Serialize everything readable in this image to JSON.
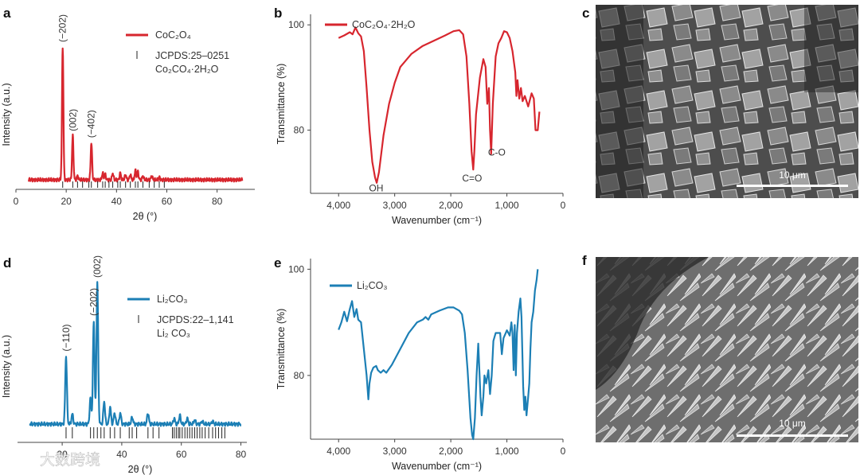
{
  "watermark": "大数跨境",
  "colors": {
    "red": "#d7262e",
    "blue": "#1c7fb5",
    "axis": "#444444",
    "text": "#333333"
  },
  "panel_letters": {
    "a": "a",
    "b": "b",
    "c": "c",
    "d": "d",
    "e": "e",
    "f": "f"
  },
  "sem": {
    "c": {
      "scale_label": "10 μm"
    },
    "f": {
      "scale_label": "10 μm"
    }
  },
  "chart_data": [
    {
      "panel": "a",
      "type": "line",
      "xlabel": "2θ (°)",
      "ylabel": "Intensity (a.u.)",
      "xlim": [
        0,
        95
      ],
      "ylim": [
        0,
        1.1
      ],
      "x_ticks": [
        0,
        20,
        40,
        60,
        80
      ],
      "x_tick_labels": [
        "0",
        "20",
        "40",
        "60",
        "80"
      ],
      "legend": {
        "line_label": "CoC₂O₄",
        "ref_line1": "JCPDS:25–0251",
        "ref_line2": "Co₂CO₄·2H₂O"
      },
      "peaks": [
        {
          "x": 18.6,
          "h": 1.0,
          "label": "(−202)"
        },
        {
          "x": 22.6,
          "h": 0.33,
          "label": "(002)"
        },
        {
          "x": 24.5,
          "h": 0.03,
          "label": ""
        },
        {
          "x": 30.0,
          "h": 0.28,
          "label": "(−402)"
        },
        {
          "x": 34.5,
          "h": 0.05,
          "label": ""
        },
        {
          "x": 35.5,
          "h": 0.04,
          "label": ""
        },
        {
          "x": 38.5,
          "h": 0.05,
          "label": ""
        },
        {
          "x": 41.5,
          "h": 0.05,
          "label": ""
        },
        {
          "x": 43.6,
          "h": 0.04,
          "label": ""
        },
        {
          "x": 45.5,
          "h": 0.04,
          "label": ""
        },
        {
          "x": 47.5,
          "h": 0.07,
          "label": ""
        },
        {
          "x": 48.5,
          "h": 0.06,
          "label": ""
        },
        {
          "x": 50.5,
          "h": 0.03,
          "label": ""
        },
        {
          "x": 54.0,
          "h": 0.03,
          "label": ""
        },
        {
          "x": 57.0,
          "h": 0.02,
          "label": ""
        }
      ],
      "reference_lines": [
        18.6,
        22.6,
        24.5,
        26.5,
        29.0,
        30.0,
        32.5,
        34.5,
        35.5,
        37.0,
        38.5,
        40.5,
        41.5,
        43.6,
        45.5,
        47.5,
        48.5,
        50.5,
        53.0,
        55.0,
        57.0,
        59.0
      ]
    },
    {
      "panel": "b",
      "type": "line",
      "xlabel": "Wavenumber (cm⁻¹)",
      "ylabel": "Transmittance (%)",
      "xlim": [
        4500,
        0
      ],
      "ylim": [
        68,
        102
      ],
      "x_ticks": [
        4000,
        3000,
        2000,
        1000,
        0
      ],
      "x_tick_labels": [
        "4,000",
        "3,000",
        "2,000",
        "1,000",
        "0"
      ],
      "y_ticks": [
        80,
        100
      ],
      "y_tick_labels": [
        "80",
        "100"
      ],
      "legend": {
        "line_label": "CoC₂O₄·2H₂O"
      },
      "annotations": [
        {
          "text": "OH",
          "x": 3330,
          "y": 68.7
        },
        {
          "text": "C=O",
          "x": 1620,
          "y": 70.6
        },
        {
          "text": "C-O",
          "x": 1180,
          "y": 75.5
        }
      ],
      "points": [
        [
          4000,
          97.5
        ],
        [
          3900,
          98
        ],
        [
          3800,
          98.6
        ],
        [
          3750,
          98.2
        ],
        [
          3700,
          99.5
        ],
        [
          3650,
          98.4
        ],
        [
          3600,
          97.8
        ],
        [
          3550,
          95
        ],
        [
          3500,
          88
        ],
        [
          3450,
          80
        ],
        [
          3400,
          74
        ],
        [
          3350,
          71
        ],
        [
          3320,
          70
        ],
        [
          3280,
          72
        ],
        [
          3200,
          79
        ],
        [
          3100,
          85
        ],
        [
          3000,
          89
        ],
        [
          2900,
          92
        ],
        [
          2700,
          94.5
        ],
        [
          2500,
          96
        ],
        [
          2300,
          97
        ],
        [
          2100,
          98
        ],
        [
          1950,
          98.8
        ],
        [
          1850,
          99
        ],
        [
          1780,
          98.2
        ],
        [
          1720,
          94
        ],
        [
          1670,
          85
        ],
        [
          1630,
          76
        ],
        [
          1600,
          72.5
        ],
        [
          1580,
          76
        ],
        [
          1550,
          83
        ],
        [
          1480,
          90
        ],
        [
          1420,
          93.5
        ],
        [
          1380,
          92
        ],
        [
          1350,
          85
        ],
        [
          1320,
          88
        ],
        [
          1300,
          80
        ],
        [
          1280,
          75.5
        ],
        [
          1250,
          85
        ],
        [
          1200,
          94
        ],
        [
          1150,
          96.5
        ],
        [
          1100,
          97.5
        ],
        [
          1050,
          98.8
        ],
        [
          1000,
          98.6
        ],
        [
          950,
          97.5
        ],
        [
          900,
          95
        ],
        [
          850,
          91
        ],
        [
          830,
          86.5
        ],
        [
          810,
          89.5
        ],
        [
          780,
          86
        ],
        [
          750,
          88
        ],
        [
          720,
          85.5
        ],
        [
          680,
          86.5
        ],
        [
          620,
          84.5
        ],
        [
          560,
          87
        ],
        [
          520,
          86
        ],
        [
          490,
          80
        ],
        [
          450,
          80
        ],
        [
          420,
          83.5
        ]
      ]
    },
    {
      "panel": "d",
      "type": "line",
      "xlabel": "2θ (°)",
      "ylabel": "Intensity (a.u.)",
      "xlim": [
        5,
        82
      ],
      "ylim": [
        0,
        1.1
      ],
      "x_ticks": [
        20,
        40,
        60,
        80
      ],
      "x_tick_labels": [
        "20",
        "40",
        "60",
        "80"
      ],
      "legend": {
        "line_label": "Li₂CO₃",
        "ref_line1": "JCPDS:22–1,141",
        "ref_line2": "Li₂ CO₃"
      },
      "peaks": [
        {
          "x": 21.3,
          "h": 0.48,
          "label": "(−110)"
        },
        {
          "x": 23.4,
          "h": 0.07,
          "label": ""
        },
        {
          "x": 29.5,
          "h": 0.18,
          "label": ""
        },
        {
          "x": 30.6,
          "h": 0.73,
          "label": "(−202)"
        },
        {
          "x": 31.8,
          "h": 1.0,
          "label": "(002)"
        },
        {
          "x": 34.1,
          "h": 0.16,
          "label": ""
        },
        {
          "x": 36.1,
          "h": 0.12,
          "label": ""
        },
        {
          "x": 37.6,
          "h": 0.08,
          "label": ""
        },
        {
          "x": 39.5,
          "h": 0.08,
          "label": ""
        },
        {
          "x": 43.5,
          "h": 0.05,
          "label": ""
        },
        {
          "x": 48.8,
          "h": 0.08,
          "label": ""
        },
        {
          "x": 57.6,
          "h": 0.04,
          "label": ""
        },
        {
          "x": 59.5,
          "h": 0.06,
          "label": ""
        },
        {
          "x": 62.0,
          "h": 0.04,
          "label": ""
        },
        {
          "x": 64.5,
          "h": 0.03,
          "label": ""
        },
        {
          "x": 67.0,
          "h": 0.02,
          "label": ""
        },
        {
          "x": 70.5,
          "h": 0.02,
          "label": ""
        }
      ],
      "reference_lines": [
        21.3,
        23.4,
        29.5,
        30.6,
        31.8,
        33.0,
        34.1,
        36.1,
        37.6,
        39.5,
        42.5,
        43.5,
        45.0,
        48.8,
        50.5,
        52.5,
        57.0,
        57.6,
        58.3,
        59.0,
        59.5,
        60.3,
        61.2,
        62.0,
        62.8,
        63.6,
        64.5,
        65.3,
        66.2,
        67.0,
        68.0,
        69.2,
        70.5,
        71.5,
        72.5,
        73.6,
        74.6
      ]
    },
    {
      "panel": "e",
      "type": "line",
      "xlabel": "Wavenumber (cm⁻¹)",
      "ylabel": "Transmittance (%)",
      "xlim": [
        4500,
        0
      ],
      "ylim": [
        68,
        102
      ],
      "x_ticks": [
        4000,
        3000,
        2000,
        1000,
        0
      ],
      "x_tick_labels": [
        "4,000",
        "3,000",
        "2,000",
        "1,000",
        "0"
      ],
      "y_ticks": [
        80,
        100
      ],
      "y_tick_labels": [
        "80",
        "100"
      ],
      "legend": {
        "line_label": "Li₂CO₃"
      },
      "points": [
        [
          4000,
          88.6
        ],
        [
          3950,
          90
        ],
        [
          3900,
          92
        ],
        [
          3850,
          90.2
        ],
        [
          3800,
          92.5
        ],
        [
          3760,
          94
        ],
        [
          3720,
          91
        ],
        [
          3680,
          92.5
        ],
        [
          3650,
          90.5
        ],
        [
          3600,
          90
        ],
        [
          3550,
          85
        ],
        [
          3500,
          80
        ],
        [
          3470,
          75.5
        ],
        [
          3450,
          78.5
        ],
        [
          3420,
          80.5
        ],
        [
          3380,
          81.5
        ],
        [
          3330,
          81.8
        ],
        [
          3300,
          81
        ],
        [
          3250,
          80.5
        ],
        [
          3200,
          81
        ],
        [
          3150,
          80.5
        ],
        [
          3050,
          82
        ],
        [
          2900,
          85
        ],
        [
          2750,
          88
        ],
        [
          2600,
          90
        ],
        [
          2500,
          90.5
        ],
        [
          2450,
          91
        ],
        [
          2400,
          90.5
        ],
        [
          2350,
          91.5
        ],
        [
          2200,
          92.2
        ],
        [
          2050,
          92.8
        ],
        [
          1950,
          92.8
        ],
        [
          1850,
          92.2
        ],
        [
          1800,
          91.5
        ],
        [
          1750,
          88
        ],
        [
          1700,
          81
        ],
        [
          1650,
          72
        ],
        [
          1620,
          68.8
        ],
        [
          1600,
          68
        ],
        [
          1570,
          72
        ],
        [
          1540,
          80
        ],
        [
          1510,
          86
        ],
        [
          1490,
          81
        ],
        [
          1470,
          76
        ],
        [
          1450,
          72.5
        ],
        [
          1420,
          76
        ],
        [
          1400,
          80
        ],
        [
          1370,
          78.5
        ],
        [
          1330,
          81
        ],
        [
          1300,
          76.5
        ],
        [
          1270,
          80
        ],
        [
          1240,
          86.5
        ],
        [
          1200,
          88
        ],
        [
          1120,
          88
        ],
        [
          1090,
          84
        ],
        [
          1060,
          87
        ],
        [
          1000,
          88.5
        ],
        [
          950,
          87.5
        ],
        [
          920,
          90
        ],
        [
          900,
          88
        ],
        [
          880,
          81
        ],
        [
          860,
          89.5
        ],
        [
          840,
          80
        ],
        [
          820,
          88
        ],
        [
          790,
          92
        ],
        [
          760,
          94.5
        ],
        [
          740,
          91
        ],
        [
          710,
          78
        ],
        [
          690,
          73.5
        ],
        [
          670,
          76
        ],
        [
          650,
          72.5
        ],
        [
          620,
          76
        ],
        [
          600,
          78.5
        ],
        [
          580,
          85
        ],
        [
          560,
          90
        ],
        [
          530,
          92
        ],
        [
          500,
          96
        ],
        [
          470,
          98
        ],
        [
          450,
          100
        ]
      ]
    }
  ]
}
